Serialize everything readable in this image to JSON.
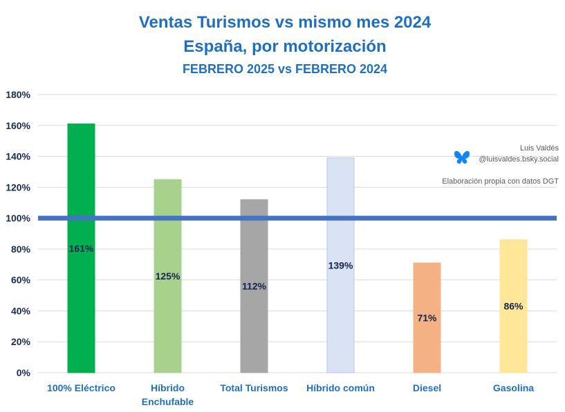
{
  "chart_data": {
    "type": "bar",
    "title": "Ventas Turismos vs mismo mes 2024",
    "subtitle": "España, por motorización",
    "period": "FEBRERO 2025 vs FEBRERO 2024",
    "xlabel": "",
    "ylabel": "",
    "ylim": [
      0,
      180
    ],
    "yticks": [
      0,
      20,
      40,
      60,
      80,
      100,
      120,
      140,
      160,
      180
    ],
    "ytick_labels": [
      "0%",
      "20%",
      "40%",
      "60%",
      "80%",
      "100%",
      "120%",
      "140%",
      "160%",
      "180%"
    ],
    "grid": true,
    "reference_line": 100,
    "categories": [
      [
        "100% Eléctrico"
      ],
      [
        "Híbrido",
        "Enchufable"
      ],
      [
        "Total Turismos"
      ],
      [
        "Híbrido común"
      ],
      [
        "Diesel"
      ],
      [
        "Gasolina"
      ]
    ],
    "values": [
      161,
      125,
      112,
      139,
      71,
      86
    ],
    "data_labels": [
      "161%",
      "125%",
      "112%",
      "139%",
      "71%",
      "86%"
    ],
    "colors": {
      "bars": [
        "#00b050",
        "#a9d18e",
        "#a6a6a6",
        "#dae3f3",
        "#f4b183",
        "#ffe699"
      ],
      "bar_borders": [
        "#00b050",
        "#a9d18e",
        "#a6a6a6",
        "#b4c7e7",
        "#f4b183",
        "#ffe699"
      ],
      "reference_line": "#4472c4",
      "title": "#1f6fbf",
      "gridline": "#d9d9d9"
    }
  },
  "credits": {
    "author": "Luis Valdés",
    "handle": "@luisvaldes.bsky.social",
    "source": "Elaboración propia con datos DGT",
    "icon": "butterfly-icon"
  }
}
